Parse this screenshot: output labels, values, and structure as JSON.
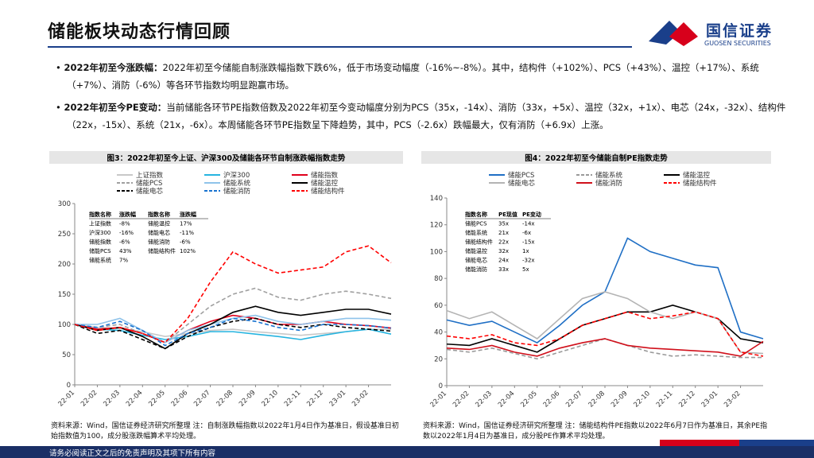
{
  "header": {
    "title": "储能板块动态行情回顾",
    "logo": "国信证券",
    "logo_en": "GUOSEN SECURITIES"
  },
  "bullets": [
    {
      "label": "2022年初至今涨跌幅：",
      "text": "2022年初至今储能自制涨跌幅指数下跌6%，低于市场变动幅度（-16%~-8%）。其中，结构件（+102%）、PCS（+43%）、温控（+17%）、系统（+7%）、消防（-6%）等各环节指数均明显跑赢市场。"
    },
    {
      "label": "2022年初至今PE变动：",
      "text": "当前储能各环节PE指数倍数及2022年初至今变动幅度分别为PCS（35x，-14x）、消防（33x，+5x）、温控（32x，+1x）、电芯（24x，-32x）、结构件（22x，-15x）、系统（21x，-6x）。本周储能各环节PE指数呈下降趋势，其中，PCS（-2.6x）跌幅最大，仅有消防（+6.9x）上涨。"
    }
  ],
  "chart_data": [
    {
      "type": "line",
      "title": "图3：2022年初至今上证、沪深300及储能各环节自制涨跌幅指数走势",
      "categories": [
        "22-01",
        "22-02",
        "22-03",
        "22-04",
        "22-05",
        "22-06",
        "22-07",
        "22-08",
        "22-09",
        "22-10",
        "22-11",
        "22-12",
        "23-01",
        "23-02",
        null
      ],
      "ylim": [
        0,
        300
      ],
      "yticks": [
        0,
        50,
        100,
        150,
        200,
        250,
        300
      ],
      "grid": false,
      "series": [
        {
          "name": "上证指数",
          "color": "#c8c8c8",
          "dash": false,
          "values": [
            100,
            95,
            93,
            88,
            80,
            85,
            90,
            92,
            88,
            85,
            82,
            85,
            88,
            92,
            92
          ]
        },
        {
          "name": "沪深300",
          "color": "#26b4e0",
          "dash": false,
          "values": [
            100,
            92,
            90,
            82,
            75,
            80,
            88,
            88,
            84,
            80,
            75,
            82,
            88,
            92,
            84
          ]
        },
        {
          "name": "储能指数",
          "color": "#e0001b",
          "dash": false,
          "values": [
            100,
            92,
            95,
            85,
            70,
            90,
            105,
            115,
            110,
            100,
            100,
            105,
            100,
            98,
            94
          ]
        },
        {
          "name": "储能PCS",
          "color": "#a0a0a0",
          "dash": true,
          "values": [
            100,
            95,
            100,
            85,
            70,
            100,
            130,
            150,
            160,
            145,
            140,
            150,
            155,
            150,
            143
          ]
        },
        {
          "name": "储能系统",
          "color": "#8fc3ea",
          "dash": false,
          "values": [
            100,
            100,
            110,
            90,
            70,
            90,
            100,
            110,
            115,
            105,
            100,
            105,
            110,
            110,
            107
          ]
        },
        {
          "name": "储能温控",
          "color": "#000000",
          "dash": false,
          "values": [
            100,
            90,
            95,
            80,
            60,
            85,
            100,
            120,
            130,
            120,
            115,
            120,
            125,
            125,
            117
          ]
        },
        {
          "name": "储能电芯",
          "color": "#000000",
          "dash": true,
          "values": [
            100,
            85,
            90,
            75,
            60,
            80,
            95,
            105,
            110,
            100,
            95,
            100,
            95,
            92,
            89
          ]
        },
        {
          "name": "储能消防",
          "color": "#1a73d0",
          "dash": true,
          "values": [
            100,
            95,
            105,
            90,
            65,
            85,
            95,
            110,
            105,
            95,
            90,
            100,
            100,
            98,
            94
          ]
        },
        {
          "name": "储能结构件",
          "color": "#ff0000",
          "dash": true,
          "values": [
            100,
            90,
            95,
            85,
            70,
            110,
            170,
            220,
            200,
            185,
            190,
            195,
            220,
            230,
            202
          ]
        }
      ],
      "table": {
        "header": [
          "指数名称",
          "涨跌幅",
          "指数名称",
          "涨跌幅"
        ],
        "rows": [
          [
            "上证指数",
            "-8%",
            "储能温控",
            "17%"
          ],
          [
            "沪深300",
            "-16%",
            "储能电芯",
            "-11%"
          ],
          [
            "储能指数",
            "-6%",
            "储能消防",
            "-6%"
          ],
          [
            "储能PCS",
            "43%",
            "储能结构件",
            "102%"
          ],
          [
            "储能系统",
            "7%"
          ]
        ]
      },
      "source": "资料来源：Wind，国信证券经济研究所整理 注：自制涨跌幅指数以2022年1月4日作为基准日，假设基准日初始指数值为100，成分股涨跌幅算术平均处理。"
    },
    {
      "type": "line",
      "title": "图4：2022年初至今储能自制PE指数走势",
      "categories": [
        "22-01",
        "22-02",
        "22-03",
        "22-04",
        "22-05",
        "22-06",
        "22-07",
        "22-08",
        "22-09",
        "22-10",
        "22-11",
        "22-12",
        "23-01",
        "23-02",
        null
      ],
      "ylim": [
        0,
        140
      ],
      "yticks": [
        0,
        20,
        40,
        60,
        80,
        100,
        120,
        140
      ],
      "grid": false,
      "series": [
        {
          "name": "储能PCS",
          "color": "#1f6fc5",
          "dash": false,
          "values": [
            49,
            45,
            48,
            40,
            32,
            45,
            60,
            70,
            110,
            100,
            95,
            90,
            88,
            40,
            35
          ]
        },
        {
          "name": "储能系统",
          "color": "#9a9a9a",
          "dash": true,
          "values": [
            27,
            25,
            28,
            24,
            20,
            25,
            30,
            35,
            30,
            25,
            22,
            23,
            22,
            21,
            21
          ]
        },
        {
          "name": "储能温控",
          "color": "#000000",
          "dash": false,
          "values": [
            31,
            30,
            35,
            30,
            25,
            35,
            45,
            50,
            55,
            55,
            60,
            55,
            50,
            35,
            32
          ]
        },
        {
          "name": "储能电芯",
          "color": "#b4b4b4",
          "dash": false,
          "values": [
            56,
            50,
            55,
            45,
            35,
            50,
            65,
            70,
            65,
            55,
            50,
            55,
            50,
            25,
            24
          ]
        },
        {
          "name": "储能消防",
          "color": "#d0101b",
          "dash": false,
          "values": [
            28,
            27,
            30,
            25,
            22,
            28,
            32,
            35,
            30,
            28,
            27,
            26,
            25,
            22,
            33
          ]
        },
        {
          "name": "储能结构件",
          "color": "#ff0000",
          "dash": true,
          "values": [
            37,
            35,
            38,
            32,
            30,
            35,
            45,
            50,
            55,
            50,
            52,
            55,
            50,
            25,
            22
          ]
        }
      ],
      "table": {
        "header": [
          "指数名称",
          "PE现值",
          "PE变动"
        ],
        "rows": [
          [
            "储能PCS",
            "35x",
            "-14x"
          ],
          [
            "储能系统",
            "21x",
            "-6x"
          ],
          [
            "储能结构件",
            "22x",
            "-15x"
          ],
          [
            "储能温控",
            "32x",
            "1x"
          ],
          [
            "储能电芯",
            "24x",
            "-32x"
          ],
          [
            "储能消防",
            "33x",
            "5x"
          ]
        ]
      },
      "source": "资料来源：Wind，国信证券经济研究所整理 注：储能结构件PE指数以2022年6月7日作为基准日，其余PE指数以2022年1月4日为基准日，成分股PE作算术平均处理。"
    }
  ],
  "footer": "请务必阅读正文之后的免责声明及其项下所有内容"
}
